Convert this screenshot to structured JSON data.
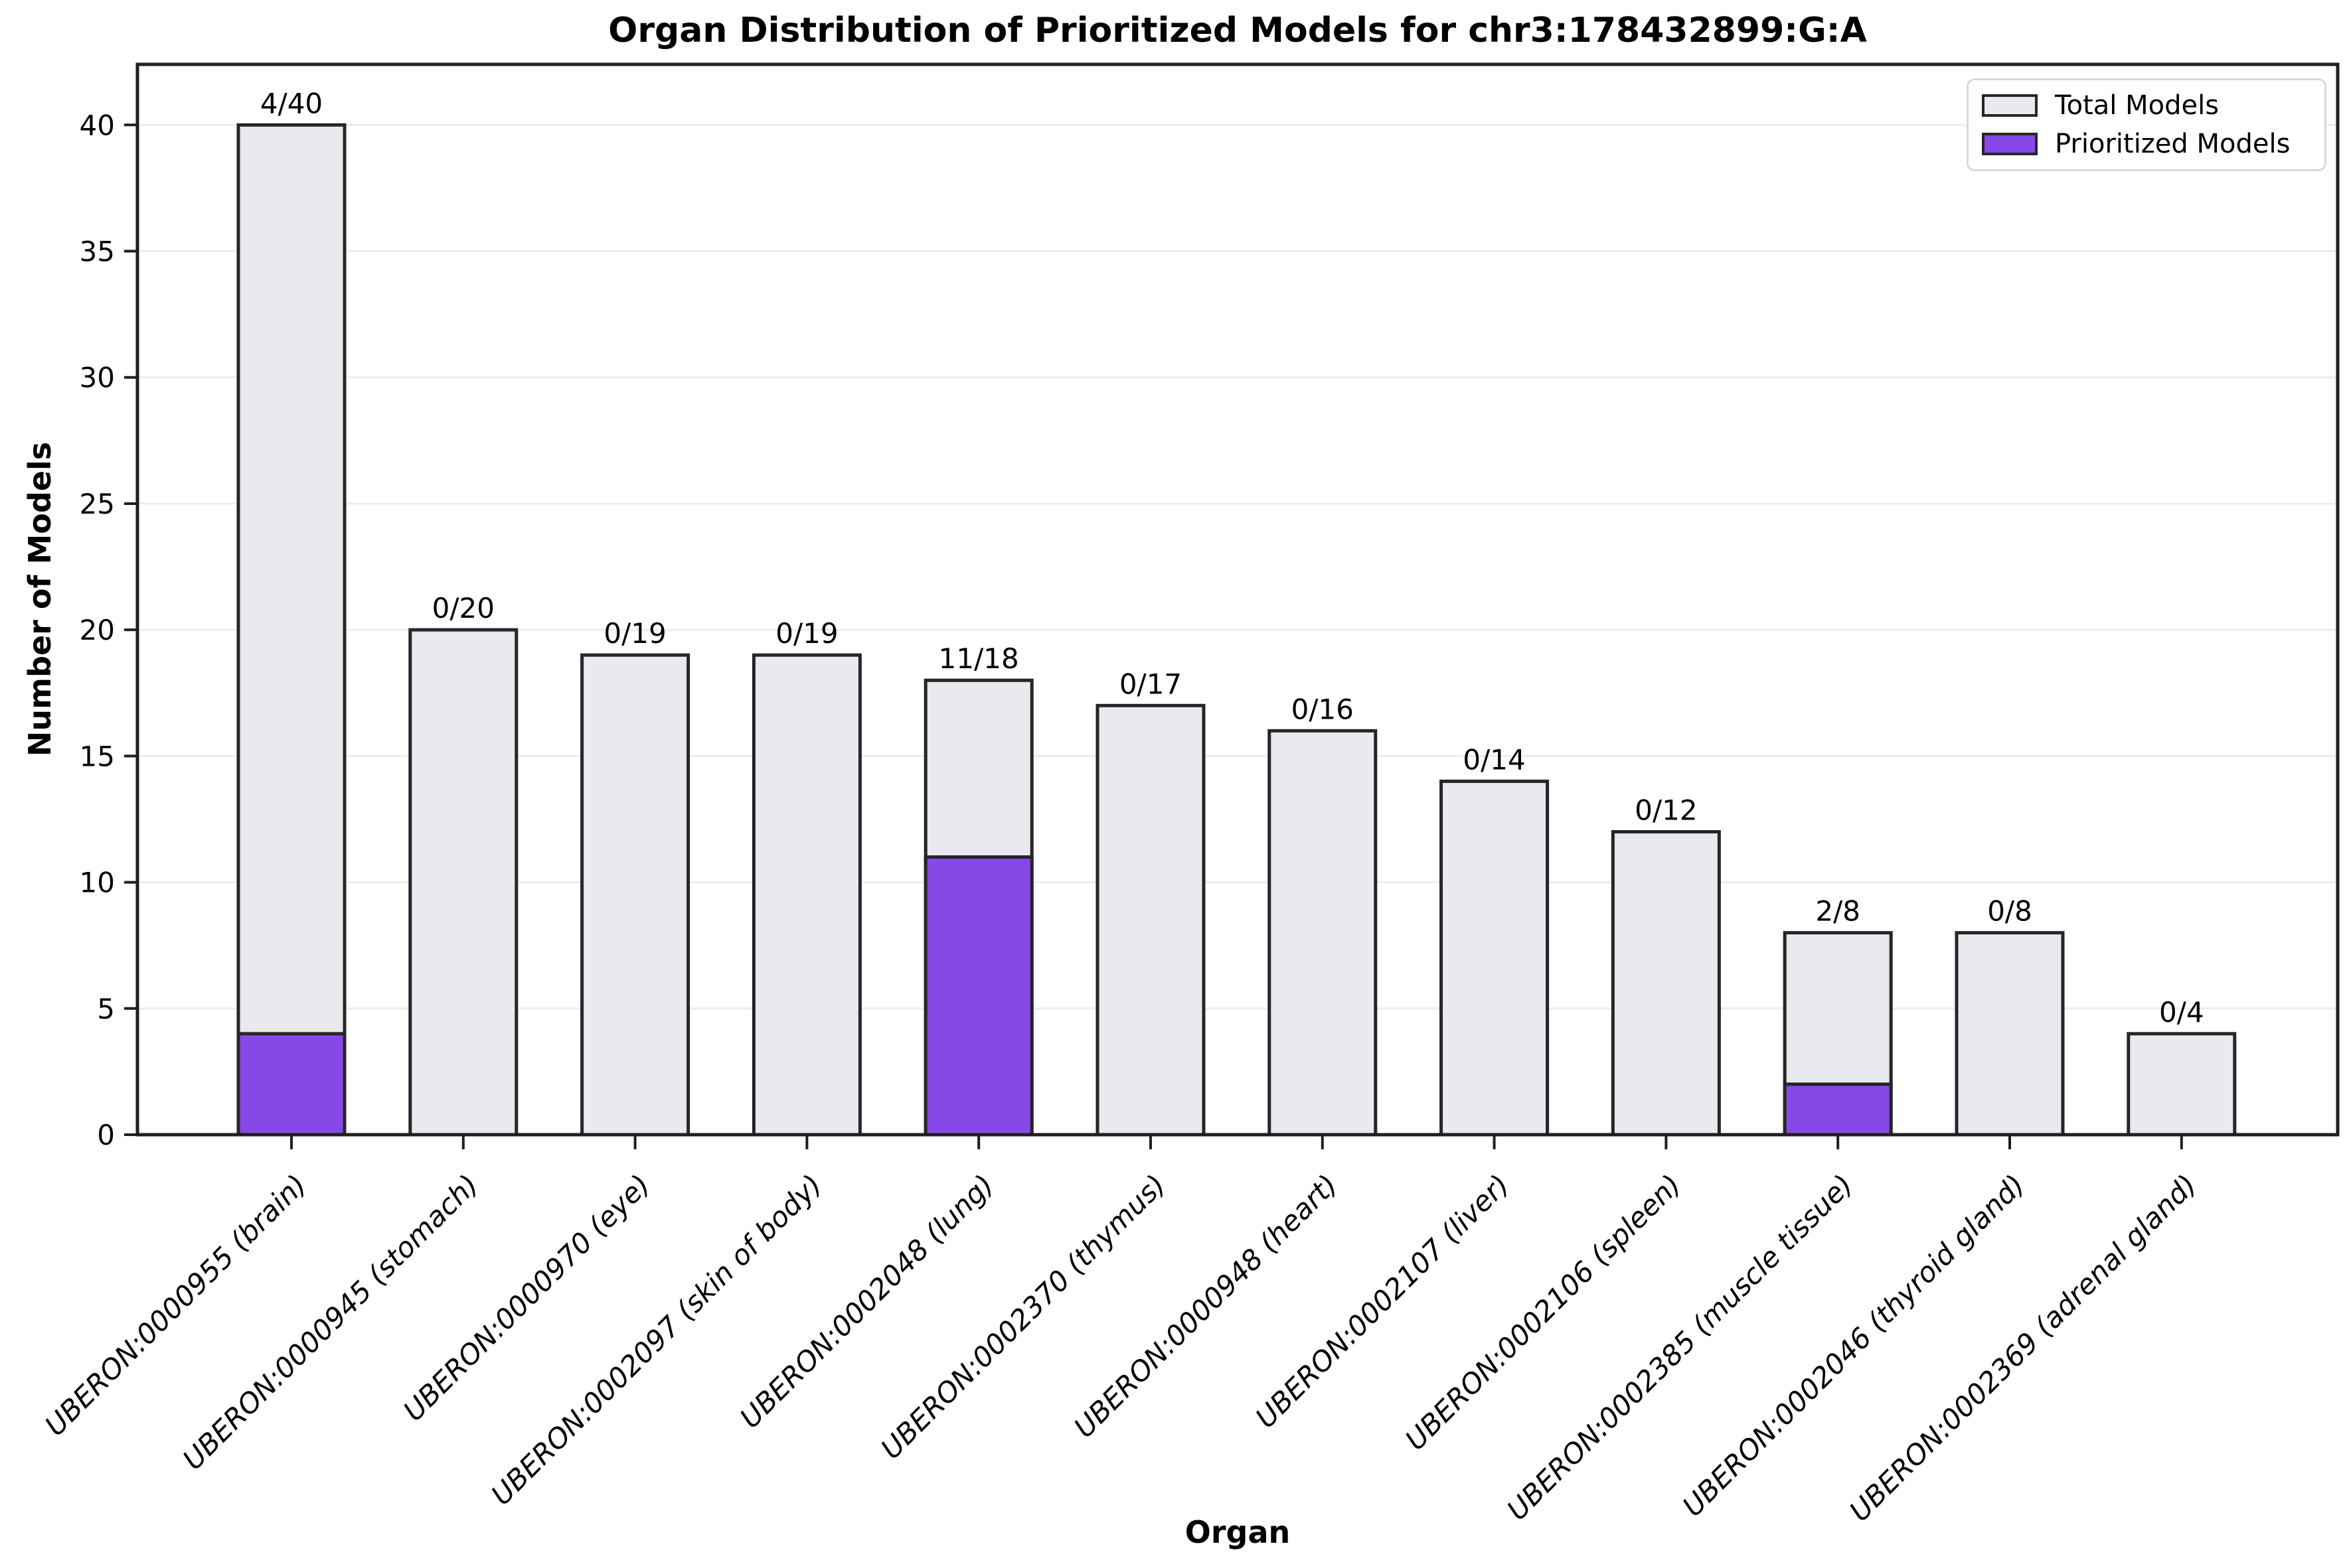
{
  "figure": {
    "title": "Organ Distribution of Prioritized Models for chr3:178432899:G:A",
    "xlabel": "Organ",
    "ylabel": "Number of Models"
  },
  "legend": {
    "items": [
      {
        "label": "Total Models",
        "color": "#e8eaef"
      },
      {
        "label": "Prioritized Models",
        "color": "#8649e8"
      }
    ]
  },
  "colors": {
    "total_bar_fill": "#e8eaef",
    "prioritized_bar_fill": "#8649e8",
    "bar_edge": "#262626",
    "axis": "#1f1f1f",
    "gridline": "#ececec",
    "legend_border": "#d9d9d9"
  },
  "chart_data": {
    "type": "bar",
    "title": "Organ Distribution of Prioritized Models for chr3:178432899:G:A",
    "xlabel": "Organ",
    "ylabel": "Number of Models",
    "categories": [
      "UBERON:0000955 (brain)",
      "UBERON:0000945 (stomach)",
      "UBERON:0000970 (eye)",
      "UBERON:0002097 (skin of body)",
      "UBERON:0002048 (lung)",
      "UBERON:0002370 (thymus)",
      "UBERON:0000948 (heart)",
      "UBERON:0002107 (liver)",
      "UBERON:0002106 (spleen)",
      "UBERON:0002385 (muscle tissue)",
      "UBERON:0002046 (thyroid gland)",
      "UBERON:0002369 (adrenal gland)"
    ],
    "series": [
      {
        "name": "Total Models",
        "values": [
          40,
          20,
          19,
          19,
          18,
          17,
          16,
          14,
          12,
          8,
          8,
          4
        ]
      },
      {
        "name": "Prioritized Models",
        "values": [
          4,
          0,
          0,
          0,
          11,
          0,
          0,
          0,
          0,
          2,
          0,
          0
        ]
      }
    ],
    "bar_labels": [
      "4/40",
      "0/20",
      "0/19",
      "0/19",
      "11/18",
      "0/17",
      "0/16",
      "0/14",
      "0/12",
      "2/8",
      "0/8",
      "0/4"
    ],
    "y_ticks": [
      0,
      5,
      10,
      15,
      20,
      25,
      30,
      35,
      40
    ],
    "ylim": [
      0,
      42.4
    ],
    "grid": true,
    "legend_position": "upper right"
  }
}
